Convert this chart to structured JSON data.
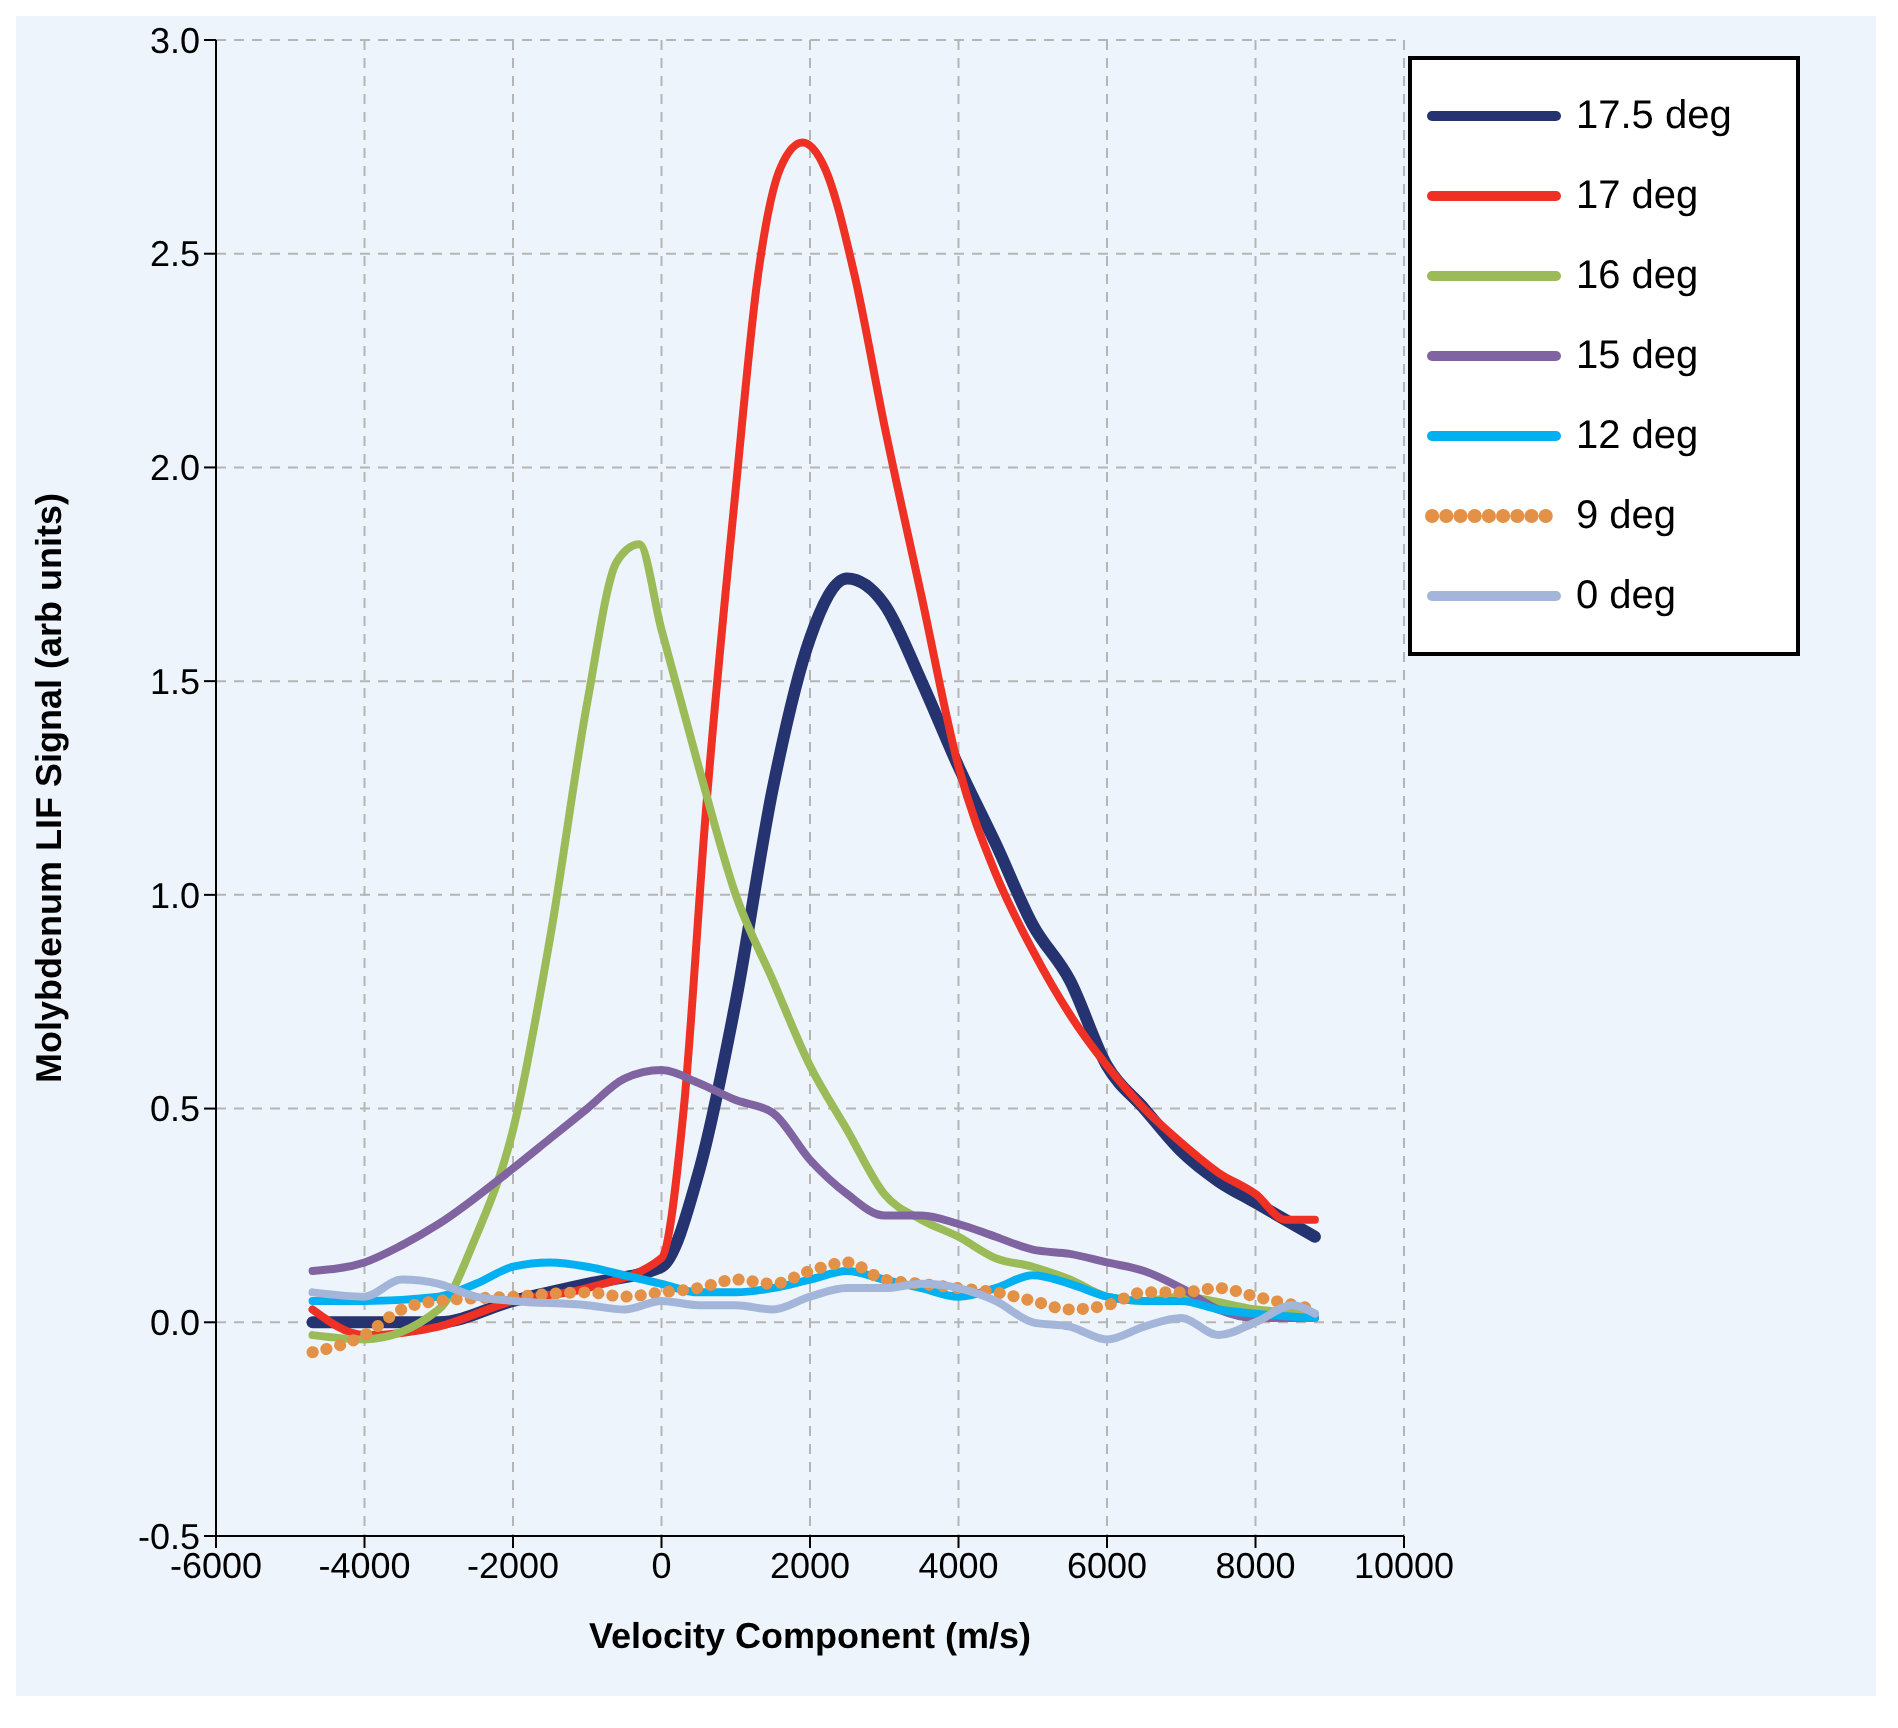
{
  "chart_data": {
    "type": "line",
    "xlabel": "Velocity Component (m/s)",
    "ylabel": "Molybdenum LIF Signal (arb units)",
    "xlim": [
      -6000,
      10000
    ],
    "xticks": [
      -6000,
      -4000,
      -2000,
      0,
      2000,
      4000,
      6000,
      8000,
      10000
    ],
    "ylim": [
      -0.5,
      3.0
    ],
    "yticks": [
      {
        "value": -0.5,
        "label": "-0.5"
      },
      {
        "value": 0,
        "label": "0.0"
      },
      {
        "value": 0.5,
        "label": "0.5"
      },
      {
        "value": 1,
        "label": "1.0"
      },
      {
        "value": 1.5,
        "label": "1.5"
      },
      {
        "value": 2,
        "label": "2.0"
      },
      {
        "value": 2.5,
        "label": "2.5"
      },
      {
        "value": 3,
        "label": "3.0"
      }
    ],
    "grid": true,
    "legend": "top right",
    "marker": "none",
    "series": [
      {
        "name": "17.5 deg",
        "color": "#253370",
        "line_style": "solid",
        "x": [
          -4700,
          -4000,
          -3000,
          -2000,
          -1000,
          0,
          500,
          1000,
          1500,
          2000,
          2500,
          3000,
          3500,
          4000,
          4500,
          5000,
          5500,
          6000,
          6500,
          7000,
          7500,
          8000,
          8800
        ],
        "values": [
          0.0,
          0.0,
          0.0,
          0.05,
          0.09,
          0.13,
          0.35,
          0.75,
          1.25,
          1.6,
          1.74,
          1.68,
          1.5,
          1.3,
          1.12,
          0.93,
          0.8,
          0.6,
          0.5,
          0.4,
          0.33,
          0.28,
          0.2
        ]
      },
      {
        "name": "17 deg",
        "color": "#ee3124",
        "line_style": "solid",
        "x": [
          -4700,
          -4000,
          -3000,
          -2000,
          -1000,
          0,
          300,
          600,
          1000,
          1300,
          1600,
          1900,
          2200,
          2600,
          3000,
          3500,
          4000,
          4500,
          5000,
          5500,
          6000,
          6500,
          7000,
          7500,
          8000,
          8400,
          8800
        ],
        "values": [
          0.03,
          -0.03,
          -0.01,
          0.05,
          0.08,
          0.15,
          0.5,
          1.2,
          1.95,
          2.45,
          2.7,
          2.76,
          2.7,
          2.45,
          2.1,
          1.7,
          1.3,
          1.05,
          0.87,
          0.72,
          0.6,
          0.5,
          0.42,
          0.35,
          0.3,
          0.24,
          0.24
        ]
      },
      {
        "name": "16 deg",
        "color": "#9bbb59",
        "line_style": "solid",
        "x": [
          -4700,
          -4000,
          -3000,
          -2500,
          -2000,
          -1500,
          -1000,
          -600,
          -300,
          0,
          500,
          1000,
          1500,
          2000,
          2500,
          3000,
          3500,
          4000,
          4500,
          5000,
          5500,
          6000,
          6500,
          7000,
          8000,
          8800
        ],
        "values": [
          -0.03,
          -0.04,
          0.03,
          0.2,
          0.45,
          0.9,
          1.45,
          1.78,
          1.82,
          1.62,
          1.3,
          1.0,
          0.8,
          0.6,
          0.45,
          0.3,
          0.24,
          0.2,
          0.15,
          0.13,
          0.1,
          0.06,
          0.05,
          0.06,
          0.03,
          0.02
        ]
      },
      {
        "name": "15 deg",
        "color": "#8064a2",
        "line_style": "solid",
        "x": [
          -4700,
          -4000,
          -3500,
          -3000,
          -2000,
          -1500,
          -1000,
          -500,
          0,
          500,
          1000,
          1500,
          2000,
          2500,
          3000,
          3500,
          4000,
          4500,
          5000,
          5500,
          6000,
          6500,
          7000,
          7500,
          8000,
          8800
        ],
        "values": [
          0.12,
          0.14,
          0.18,
          0.23,
          0.36,
          0.43,
          0.5,
          0.57,
          0.59,
          0.56,
          0.52,
          0.49,
          0.38,
          0.3,
          0.25,
          0.25,
          0.23,
          0.2,
          0.17,
          0.16,
          0.14,
          0.12,
          0.08,
          0.03,
          0.01,
          0.01
        ]
      },
      {
        "name": "12 deg",
        "color": "#00b0f0",
        "line_style": "solid",
        "x": [
          -4700,
          -4000,
          -3000,
          -2500,
          -2000,
          -1500,
          -1000,
          -500,
          0,
          500,
          1000,
          1500,
          2000,
          2500,
          3000,
          3500,
          4000,
          4500,
          5000,
          5500,
          6000,
          6500,
          7000,
          7500,
          8000,
          8800
        ],
        "values": [
          0.05,
          0.05,
          0.06,
          0.09,
          0.13,
          0.14,
          0.13,
          0.11,
          0.09,
          0.07,
          0.07,
          0.08,
          0.1,
          0.12,
          0.1,
          0.08,
          0.06,
          0.08,
          0.11,
          0.09,
          0.06,
          0.05,
          0.05,
          0.03,
          0.02,
          0.01
        ]
      },
      {
        "name": "9 deg",
        "color": "#e39147",
        "line_style": "dotted",
        "x": [
          -4700,
          -4000,
          -3500,
          -3000,
          -2000,
          -1000,
          -500,
          0,
          500,
          1000,
          1500,
          2000,
          2500,
          3000,
          3500,
          4000,
          4500,
          5000,
          5500,
          6000,
          6500,
          7000,
          7500,
          8000,
          8800
        ],
        "values": [
          -0.07,
          -0.03,
          0.03,
          0.05,
          0.06,
          0.07,
          0.06,
          0.07,
          0.08,
          0.1,
          0.09,
          0.12,
          0.14,
          0.1,
          0.09,
          0.08,
          0.07,
          0.05,
          0.03,
          0.04,
          0.07,
          0.07,
          0.08,
          0.06,
          0.03
        ]
      },
      {
        "name": "0 deg",
        "color": "#a3b5d8",
        "line_style": "solid",
        "x": [
          -4700,
          -4000,
          -3500,
          -3000,
          -2500,
          -2000,
          -1000,
          -500,
          0,
          500,
          1000,
          1500,
          2000,
          2500,
          3000,
          3500,
          4000,
          4500,
          5000,
          5500,
          6000,
          6500,
          7000,
          7500,
          8000,
          8500,
          8800
        ],
        "values": [
          0.07,
          0.06,
          0.1,
          0.09,
          0.06,
          0.05,
          0.04,
          0.03,
          0.05,
          0.04,
          0.04,
          0.03,
          0.06,
          0.08,
          0.08,
          0.09,
          0.08,
          0.05,
          0.0,
          -0.01,
          -0.04,
          -0.01,
          0.01,
          -0.03,
          0.0,
          0.04,
          0.02
        ]
      }
    ]
  }
}
